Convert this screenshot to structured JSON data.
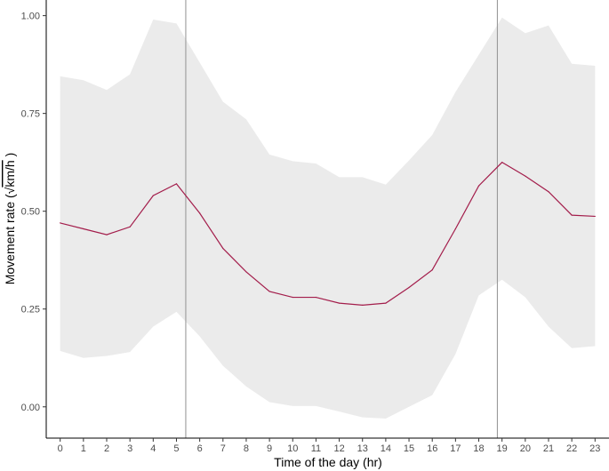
{
  "chart_data": {
    "type": "line",
    "title": "",
    "xlabel": "Time of the day (hr)",
    "ylabel_prefix": "Movement rate (",
    "ylabel_radical": "√",
    "ylabel_unit": "km/h",
    "ylabel_suffix": " )",
    "x": [
      0,
      1,
      2,
      3,
      4,
      5,
      6,
      7,
      8,
      9,
      10,
      11,
      12,
      13,
      14,
      15,
      16,
      17,
      18,
      19,
      20,
      21,
      22,
      23
    ],
    "x_ticks": [
      "0",
      "1",
      "2",
      "3",
      "4",
      "5",
      "6",
      "7",
      "8",
      "9",
      "10",
      "11",
      "12",
      "13",
      "14",
      "15",
      "16",
      "17",
      "18",
      "19",
      "20",
      "21",
      "22",
      "23"
    ],
    "y_ticks": [
      "0.00",
      "0.25",
      "0.50",
      "0.75",
      "1.00"
    ],
    "y_tick_values": [
      0,
      0.25,
      0.5,
      0.75,
      1.0
    ],
    "xlim": [
      -0.6,
      23.6
    ],
    "ylim": [
      -0.08,
      1.04
    ],
    "series": [
      {
        "values": [
          0.47,
          0.455,
          0.44,
          0.46,
          0.54,
          0.57,
          0.495,
          0.405,
          0.345,
          0.295,
          0.28,
          0.28,
          0.265,
          0.26,
          0.265,
          0.305,
          0.35,
          0.455,
          0.565,
          0.625,
          0.59,
          0.55,
          0.49,
          0.487
        ],
        "color": "#a31d4b"
      }
    ],
    "band": {
      "upper": [
        0.845,
        0.835,
        0.81,
        0.85,
        0.99,
        0.98,
        0.88,
        0.78,
        0.735,
        0.645,
        0.628,
        0.622,
        0.587,
        0.587,
        0.568,
        0.63,
        0.695,
        0.805,
        0.9,
        0.995,
        0.955,
        0.975,
        0.877,
        0.872
      ],
      "lower": [
        0.143,
        0.125,
        0.13,
        0.14,
        0.205,
        0.243,
        0.18,
        0.105,
        0.052,
        0.012,
        0.002,
        0.002,
        -0.012,
        -0.027,
        -0.03,
        0.0,
        0.03,
        0.135,
        0.285,
        0.325,
        0.28,
        0.205,
        0.15,
        0.155
      ],
      "color": "#ebebeb"
    },
    "vlines": [
      5.4,
      18.8
    ],
    "vline_color": "#9a9a9a",
    "grid": false
  }
}
